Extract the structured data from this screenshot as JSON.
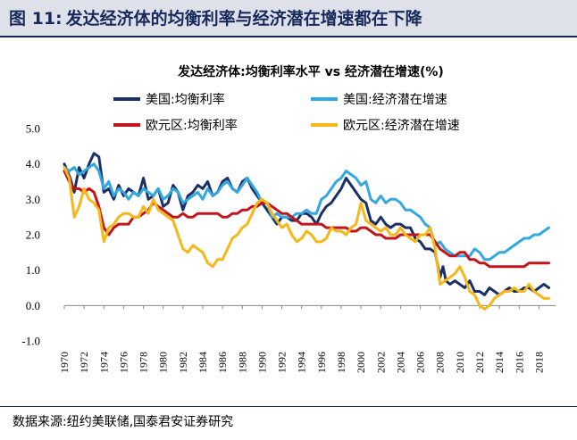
{
  "figure": {
    "number": "图 11:",
    "title": "发达经济体的均衡利率与经济潜在增速都在下降",
    "source": "数据来源:纽约美联储,国泰君安证券研究"
  },
  "colors": {
    "header_text": "#16295a",
    "header_bg": "#dfe1ea"
  },
  "chart_data": {
    "type": "line",
    "title": "发达经济体:均衡利率水平 vs 经济潜在增速(%)",
    "xlabel": "",
    "ylabel": "",
    "ylim": [
      -1.0,
      5.0
    ],
    "yticks": [
      "-1.0",
      "0.0",
      "1.0",
      "2.0",
      "3.0",
      "4.0",
      "5.0"
    ],
    "xlim": [
      1970,
      2019.5
    ],
    "xticks": [
      "1970",
      "1972",
      "1974",
      "1976",
      "1978",
      "1980",
      "1982",
      "1984",
      "1986",
      "1988",
      "1990",
      "1992",
      "1994",
      "1996",
      "1998",
      "2000",
      "2002",
      "2004",
      "2006",
      "2008",
      "2010",
      "2012",
      "2014",
      "2016",
      "2018"
    ],
    "grid": false,
    "legend_position": "top-left",
    "series": [
      {
        "name": "美国:均衡利率",
        "color": "#1a3066",
        "x": [
          1970,
          1970.6,
          1971,
          1971.5,
          1972,
          1972.5,
          1973,
          1973.5,
          1974,
          1974.5,
          1975,
          1975.5,
          1976,
          1976.5,
          1977,
          1977.5,
          1978,
          1978.5,
          1979,
          1979.5,
          1980,
          1980.5,
          1981,
          1981.5,
          1982,
          1982.5,
          1983,
          1983.5,
          1984,
          1984.5,
          1985,
          1985.5,
          1986,
          1986.5,
          1987,
          1987.5,
          1988,
          1988.5,
          1989,
          1989.5,
          1990,
          1990.5,
          1991,
          1991.5,
          1992,
          1992.5,
          1993,
          1993.5,
          1994,
          1994.5,
          1995,
          1995.5,
          1996,
          1996.5,
          1997,
          1997.5,
          1998,
          1998.5,
          1999,
          1999.5,
          2000,
          2000.5,
          2001,
          2001.5,
          2002,
          2002.5,
          2003,
          2003.5,
          2004,
          2004.5,
          2005,
          2005.5,
          2006,
          2006.5,
          2007,
          2007.5,
          2008,
          2008.3,
          2008.6,
          2009,
          2009.5,
          2010,
          2010.5,
          2011,
          2011.5,
          2012,
          2012.5,
          2013,
          2013.5,
          2014,
          2014.5,
          2015,
          2015.5,
          2016,
          2016.5,
          2017,
          2017.5,
          2018,
          2018.5,
          2019
        ],
        "values": [
          4.0,
          3.6,
          3.2,
          3.9,
          3.6,
          4.0,
          4.3,
          4.2,
          3.2,
          3.3,
          3.0,
          3.4,
          3.1,
          3.3,
          3.2,
          3.1,
          3.6,
          3.0,
          3.1,
          3.3,
          2.8,
          2.9,
          3.4,
          3.2,
          2.7,
          3.1,
          3.2,
          3.4,
          3.3,
          3.5,
          3.1,
          3.2,
          3.5,
          3.6,
          3.3,
          3.2,
          3.5,
          3.6,
          3.3,
          3.1,
          2.9,
          2.7,
          2.5,
          2.3,
          2.5,
          2.5,
          2.4,
          2.4,
          2.6,
          2.6,
          2.5,
          2.3,
          2.6,
          2.8,
          2.9,
          3.1,
          3.3,
          3.6,
          3.4,
          3.2,
          3.0,
          2.9,
          2.4,
          2.3,
          2.5,
          2.3,
          2.2,
          2.3,
          2.3,
          2.2,
          2.2,
          1.9,
          1.8,
          1.6,
          1.6,
          1.5,
          0.8,
          1.1,
          0.7,
          0.6,
          0.7,
          0.6,
          0.5,
          0.7,
          0.4,
          0.4,
          0.3,
          0.5,
          0.4,
          0.3,
          0.4,
          0.5,
          0.4,
          0.4,
          0.5,
          0.5,
          0.4,
          0.5,
          0.6,
          0.5
        ]
      },
      {
        "name": "美国:经济潜在增速",
        "color": "#33a8e0",
        "x": [
          1970,
          1970.5,
          1971,
          1971.5,
          1972,
          1972.5,
          1973,
          1973.5,
          1974,
          1974.5,
          1975,
          1975.5,
          1976,
          1976.5,
          1977,
          1977.5,
          1978,
          1978.5,
          1979,
          1979.5,
          1980,
          1980.5,
          1981,
          1981.5,
          1982,
          1982.5,
          1983,
          1983.5,
          1984,
          1984.5,
          1985,
          1985.5,
          1986,
          1986.5,
          1987,
          1987.5,
          1988,
          1988.5,
          1989,
          1989.5,
          1990,
          1990.5,
          1991,
          1991.5,
          1992,
          1992.5,
          1993,
          1993.5,
          1994,
          1994.5,
          1995,
          1995.5,
          1996,
          1996.5,
          1997,
          1997.5,
          1998,
          1998.5,
          1999,
          1999.5,
          2000,
          2000.5,
          2001,
          2001.5,
          2002,
          2002.5,
          2003,
          2003.5,
          2004,
          2004.5,
          2005,
          2005.5,
          2006,
          2006.5,
          2007,
          2007.5,
          2008,
          2008.5,
          2009,
          2009.5,
          2010,
          2010.5,
          2011,
          2011.5,
          2012,
          2012.5,
          2013,
          2013.5,
          2014,
          2014.5,
          2015,
          2015.5,
          2016,
          2016.5,
          2017,
          2017.5,
          2018,
          2018.5,
          2019
        ],
        "values": [
          3.9,
          3.8,
          3.9,
          3.7,
          3.8,
          3.9,
          4.0,
          3.8,
          3.3,
          3.5,
          3.1,
          3.3,
          3.2,
          3.0,
          3.2,
          3.1,
          3.3,
          3.2,
          3.1,
          3.3,
          3.0,
          3.1,
          3.3,
          3.2,
          2.9,
          3.0,
          3.1,
          3.2,
          3.0,
          3.3,
          3.1,
          3.2,
          3.4,
          3.5,
          3.3,
          3.2,
          3.4,
          3.6,
          3.4,
          3.2,
          2.9,
          2.9,
          2.5,
          2.6,
          2.5,
          2.5,
          2.5,
          2.6,
          2.6,
          2.7,
          2.6,
          2.6,
          3.0,
          3.1,
          3.3,
          3.5,
          3.6,
          3.8,
          3.7,
          3.6,
          3.4,
          3.5,
          3.0,
          2.9,
          3.1,
          2.9,
          3.0,
          3.0,
          2.9,
          2.7,
          2.7,
          2.6,
          2.5,
          2.3,
          2.2,
          1.7,
          1.8,
          1.6,
          1.5,
          1.4,
          1.4,
          1.4,
          1.4,
          1.6,
          1.5,
          1.3,
          1.3,
          1.4,
          1.5,
          1.5,
          1.6,
          1.7,
          1.8,
          1.9,
          1.9,
          2.0,
          2.0,
          2.1,
          2.2
        ]
      },
      {
        "name": "欧元区:均衡利率",
        "color": "#c0151b",
        "x": [
          1970,
          1970.5,
          1971,
          1971.5,
          1972,
          1972.5,
          1973,
          1973.5,
          1974,
          1974.5,
          1975,
          1975.5,
          1976,
          1976.5,
          1977,
          1977.5,
          1978,
          1978.5,
          1979,
          1979.5,
          1980,
          1980.5,
          1981,
          1981.5,
          1982,
          1982.5,
          1983,
          1983.5,
          1984,
          1984.5,
          1985,
          1985.5,
          1986,
          1986.5,
          1987,
          1987.5,
          1988,
          1988.5,
          1989,
          1989.5,
          1990,
          1990.5,
          1991,
          1991.5,
          1992,
          1992.5,
          1993,
          1993.5,
          1994,
          1994.5,
          1995,
          1995.5,
          1996,
          1996.5,
          1997,
          1997.5,
          1998,
          1998.5,
          1999,
          1999.5,
          2000,
          2000.5,
          2001,
          2001.5,
          2002,
          2002.5,
          2003,
          2003.5,
          2004,
          2004.5,
          2005,
          2005.5,
          2006,
          2006.5,
          2007,
          2007.5,
          2008,
          2008.5,
          2009,
          2009.5,
          2010,
          2010.5,
          2011,
          2011.5,
          2012,
          2012.5,
          2013,
          2013.5,
          2014,
          2014.5,
          2015,
          2015.5,
          2016,
          2016.5,
          2017,
          2017.5,
          2018,
          2018.5,
          2019
        ],
        "values": [
          3.8,
          3.5,
          3.3,
          3.3,
          3.2,
          3.3,
          3.2,
          2.8,
          2.2,
          2.0,
          2.2,
          2.3,
          2.3,
          2.3,
          2.5,
          2.5,
          2.6,
          2.7,
          2.9,
          2.8,
          2.7,
          2.6,
          2.5,
          2.5,
          2.6,
          2.5,
          2.5,
          2.6,
          2.6,
          2.6,
          2.6,
          2.6,
          2.5,
          2.5,
          2.6,
          2.6,
          2.7,
          2.7,
          2.8,
          2.8,
          2.9,
          2.9,
          2.8,
          2.7,
          2.6,
          2.6,
          2.5,
          2.4,
          2.3,
          2.3,
          2.3,
          2.3,
          2.3,
          2.2,
          2.2,
          2.2,
          2.2,
          2.2,
          2.1,
          2.1,
          2.2,
          2.2,
          2.1,
          2.0,
          2.0,
          1.9,
          1.9,
          1.9,
          2.0,
          2.0,
          2.0,
          2.0,
          2.0,
          2.0,
          2.0,
          1.8,
          1.6,
          1.5,
          1.4,
          1.4,
          1.5,
          1.5,
          1.3,
          1.3,
          1.2,
          1.2,
          1.1,
          1.1,
          1.1,
          1.1,
          1.1,
          1.1,
          1.1,
          1.1,
          1.2,
          1.2,
          1.2,
          1.2,
          1.2
        ]
      },
      {
        "name": "欧元区:经济潜在增速",
        "color": "#f7b718",
        "x": [
          1970,
          1970.5,
          1971,
          1971.5,
          1972,
          1972.5,
          1973,
          1973.5,
          1974,
          1974.5,
          1975,
          1975.5,
          1976,
          1976.5,
          1977,
          1977.5,
          1978,
          1978.5,
          1979,
          1979.5,
          1980,
          1980.5,
          1981,
          1981.5,
          1982,
          1982.5,
          1983,
          1983.5,
          1984,
          1984.5,
          1985,
          1985.5,
          1986,
          1986.5,
          1987,
          1987.5,
          1988,
          1988.5,
          1989,
          1989.5,
          1990,
          1990.5,
          1991,
          1991.5,
          1992,
          1992.5,
          1993,
          1993.5,
          1994,
          1994.5,
          1995,
          1995.5,
          1996,
          1996.5,
          1997,
          1997.5,
          1998,
          1998.5,
          1999,
          1999.5,
          2000,
          2000.5,
          2001,
          2001.5,
          2002,
          2002.5,
          2003,
          2003.5,
          2004,
          2004.5,
          2005,
          2005.5,
          2006,
          2006.5,
          2007,
          2007.5,
          2008,
          2008.5,
          2009,
          2009.5,
          2010,
          2010.5,
          2011,
          2011.5,
          2012,
          2012.5,
          2013,
          2013.5,
          2014,
          2014.5,
          2015,
          2015.5,
          2016,
          2016.5,
          2017,
          2017.5,
          2018,
          2018.5,
          2019
        ],
        "values": [
          3.9,
          3.6,
          2.5,
          2.8,
          3.3,
          3.0,
          2.9,
          2.7,
          1.8,
          2.2,
          2.3,
          2.5,
          2.6,
          2.6,
          2.5,
          2.5,
          2.8,
          2.6,
          3.0,
          2.7,
          2.6,
          2.5,
          2.4,
          2.0,
          1.6,
          1.5,
          1.7,
          1.6,
          1.5,
          1.2,
          1.1,
          1.3,
          1.3,
          1.6,
          1.9,
          2.0,
          2.2,
          2.3,
          2.6,
          2.9,
          3.0,
          2.9,
          2.6,
          2.4,
          2.2,
          2.3,
          2.0,
          1.8,
          1.9,
          2.1,
          2.0,
          1.8,
          1.8,
          1.9,
          2.2,
          2.1,
          2.1,
          2.0,
          2.2,
          2.3,
          2.9,
          2.4,
          2.3,
          2.2,
          2.1,
          2.2,
          2.0,
          2.0,
          2.2,
          2.0,
          1.9,
          1.8,
          2.0,
          2.0,
          2.2,
          1.6,
          0.6,
          0.7,
          0.8,
          0.9,
          1.1,
          0.8,
          0.4,
          0.3,
          0.0,
          -0.1,
          0.0,
          0.2,
          0.3,
          0.4,
          0.4,
          0.5,
          0.4,
          0.4,
          0.6,
          0.4,
          0.3,
          0.2,
          0.2
        ]
      }
    ]
  }
}
